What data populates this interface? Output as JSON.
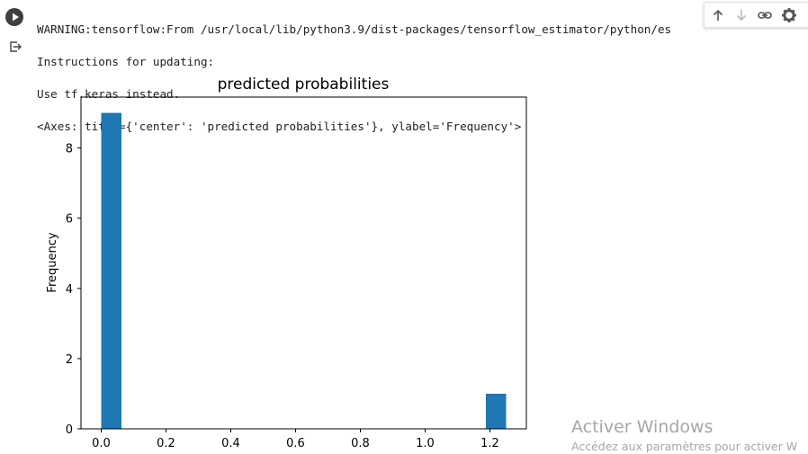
{
  "cell": {
    "output_lines": [
      "WARNING:tensorflow:From /usr/local/lib/python3.9/dist-packages/tensorflow_estimator/python/es",
      "Instructions for updating:",
      "Use tf.keras instead.",
      "<Axes: title={'center': 'predicted probabilities'}, ylabel='Frequency'>"
    ]
  },
  "toolbar": {
    "icons": [
      "arrow-up-icon",
      "arrow-down-icon",
      "link-icon",
      "gear-icon",
      "more-icon"
    ]
  },
  "chart_data": {
    "type": "histogram",
    "title": "predicted probabilities",
    "xlabel": "",
    "ylabel": "Frequency",
    "bins": [
      {
        "x0": 0.0,
        "x1": 0.0625,
        "count": 9
      },
      {
        "x0": 1.1875,
        "x1": 1.25,
        "count": 1
      }
    ],
    "xlim": [
      -0.0625,
      1.3125
    ],
    "ylim": [
      0,
      9.45
    ],
    "xticks": [
      0.0,
      0.2,
      0.4,
      0.6,
      0.8,
      1.0,
      1.2
    ],
    "xtick_labels": [
      "0.0",
      "0.2",
      "0.4",
      "0.6",
      "0.8",
      "1.0",
      "1.2"
    ],
    "yticks": [
      0,
      2,
      4,
      6,
      8
    ],
    "ytick_labels": [
      "0",
      "2",
      "4",
      "6",
      "8"
    ],
    "bar_color": "#1f77b4"
  },
  "watermark": {
    "title": "Activer Windows",
    "subtitle": "Accédez aux paramètres pour activer W"
  }
}
